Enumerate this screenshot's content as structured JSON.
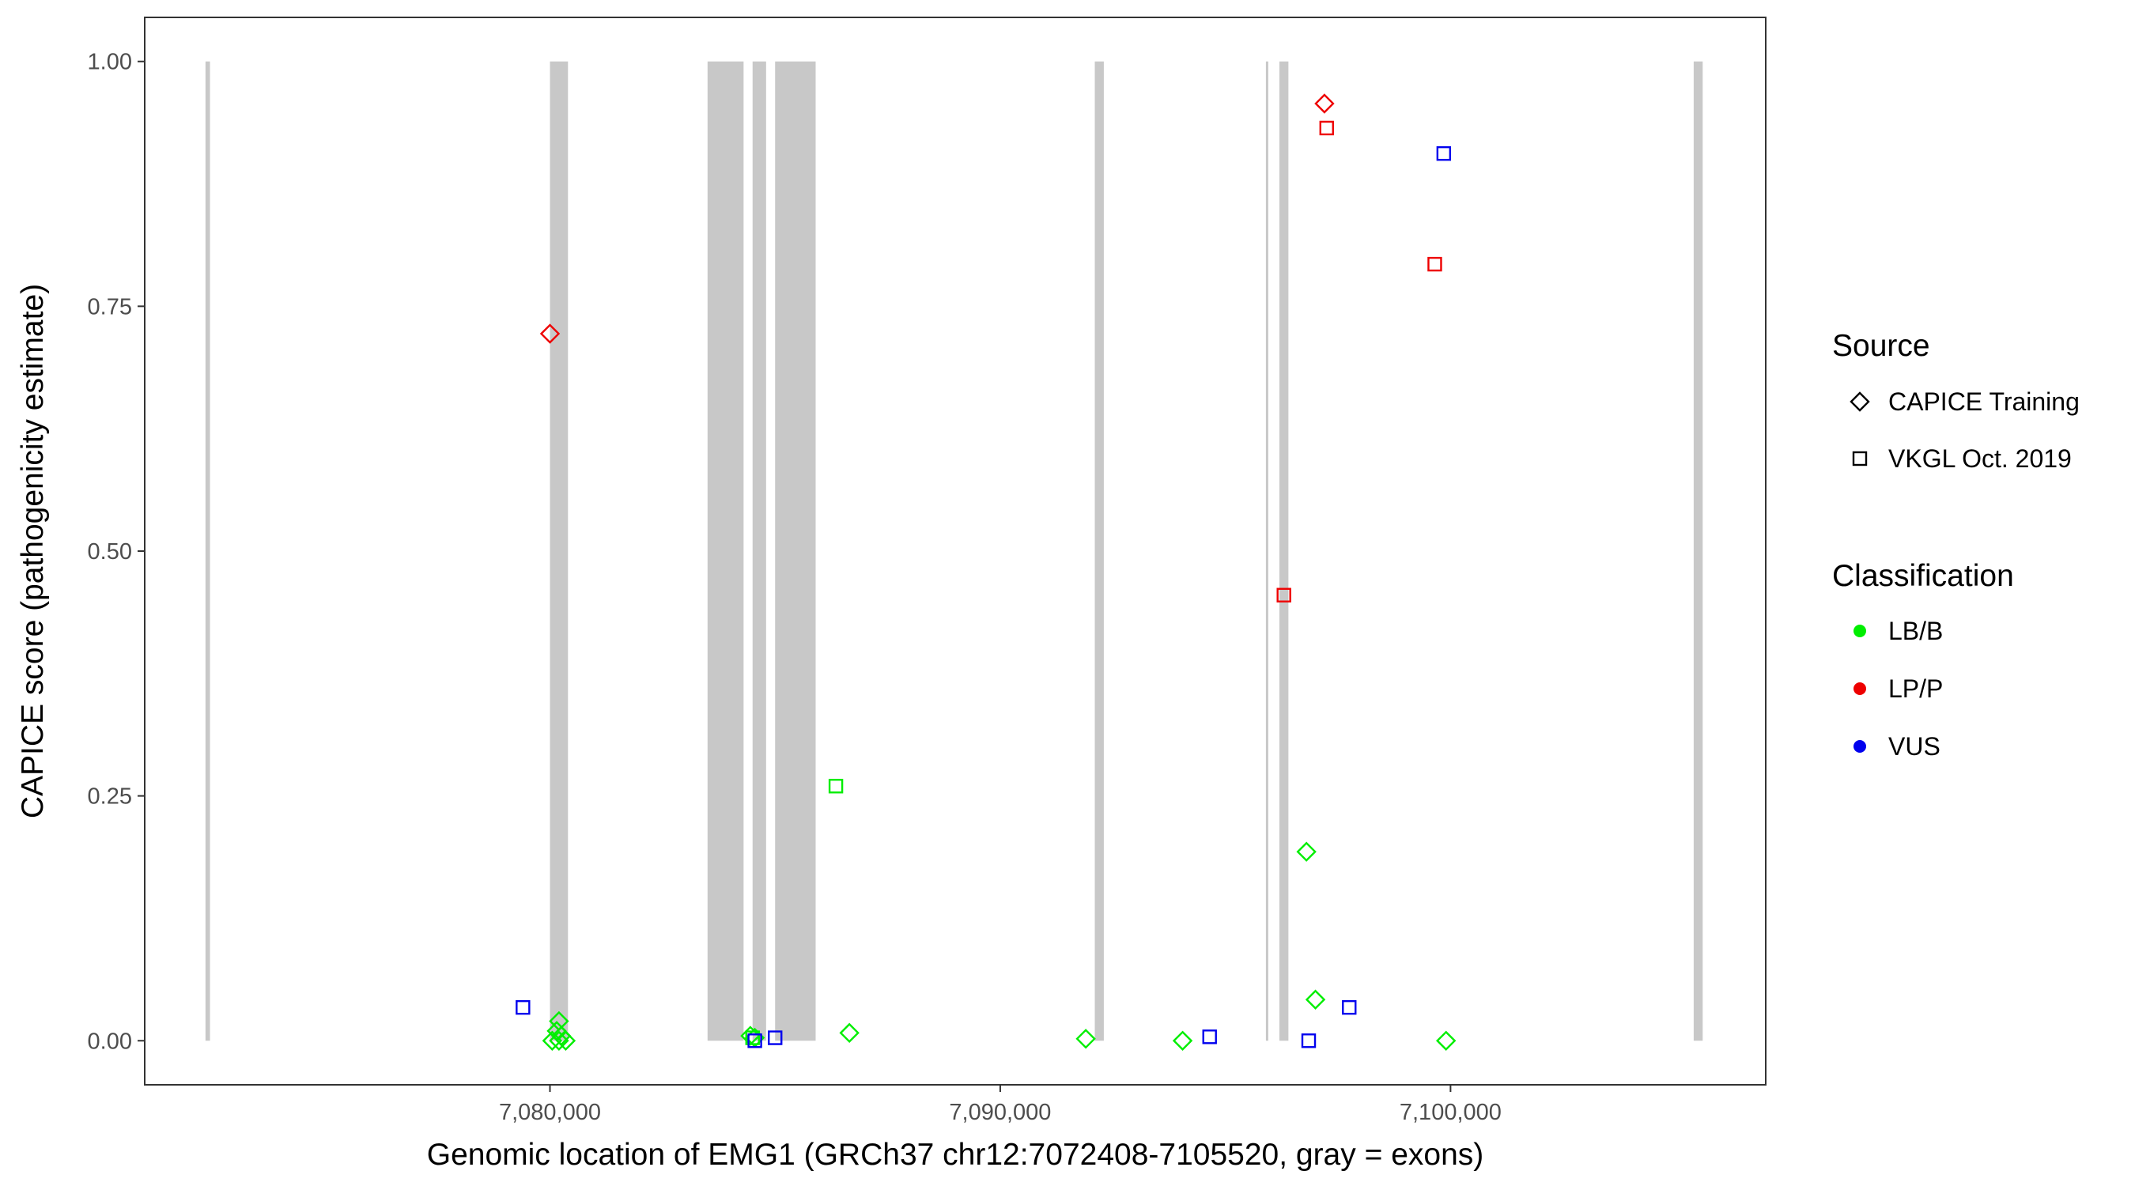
{
  "chart_data": {
    "type": "scatter",
    "xlabel": "Genomic location of EMG1 (GRCh37 chr12:7072408-7105520, gray = exons)",
    "ylabel": "CAPICE score (pathogenicity estimate)",
    "xlim": [
      7071000,
      7107000
    ],
    "ylim": [
      -0.045,
      1.045
    ],
    "x_ticks": [
      7080000,
      7090000,
      7100000
    ],
    "x_tick_labels": [
      "7,080,000",
      "7,090,000",
      "7,100,000"
    ],
    "y_ticks": [
      0,
      0.25,
      0.5,
      0.75,
      1.0
    ],
    "y_tick_labels": [
      "0.00",
      "0.25",
      "0.50",
      "0.75",
      "1.00"
    ],
    "exons": [
      {
        "start": 7072350,
        "end": 7072450
      },
      {
        "start": 7080000,
        "end": 7080400
      },
      {
        "start": 7083500,
        "end": 7084300
      },
      {
        "start": 7084500,
        "end": 7084800
      },
      {
        "start": 7085000,
        "end": 7085900
      },
      {
        "start": 7092100,
        "end": 7092300
      },
      {
        "start": 7095900,
        "end": 7095950
      },
      {
        "start": 7096200,
        "end": 7096400
      },
      {
        "start": 7105400,
        "end": 7105600
      }
    ],
    "grid": false,
    "legend_position": "right",
    "legends": [
      {
        "title": "Source",
        "entries": [
          {
            "label": "CAPICE Training",
            "shape": "diamond"
          },
          {
            "label": "VKGL Oct. 2019",
            "shape": "square"
          }
        ]
      },
      {
        "title": "Classification",
        "entries": [
          {
            "label": "LB/B",
            "color": "#00ee00"
          },
          {
            "label": "LP/P",
            "color": "#ee0000"
          },
          {
            "label": "VUS",
            "color": "#0000ee"
          }
        ]
      }
    ],
    "series": [
      {
        "source": "CAPICE Training",
        "classification": "LB/B",
        "shape": "diamond",
        "color": "#00ee00",
        "points": [
          [
            7080200,
            0.02
          ],
          [
            7080150,
            0.01
          ],
          [
            7080050,
            0.0
          ],
          [
            7080200,
            0.0
          ],
          [
            7080350,
            0.0
          ],
          [
            7080250,
            0.005
          ],
          [
            7084450,
            0.005
          ],
          [
            7084550,
            0.003
          ],
          [
            7086650,
            0.008
          ],
          [
            7091900,
            0.002
          ],
          [
            7094050,
            0.0
          ],
          [
            7096800,
            0.193
          ],
          [
            7097000,
            0.042
          ],
          [
            7099900,
            0.0
          ]
        ]
      },
      {
        "source": "CAPICE Training",
        "classification": "LP/P",
        "shape": "diamond",
        "color": "#ee0000",
        "points": [
          [
            7080000,
            0.722
          ],
          [
            7097200,
            0.957
          ]
        ]
      },
      {
        "source": "VKGL Oct. 2019",
        "classification": "LB/B",
        "shape": "square",
        "color": "#00ee00",
        "points": [
          [
            7086350,
            0.26
          ],
          [
            7084500,
            0.003
          ]
        ]
      },
      {
        "source": "VKGL Oct. 2019",
        "classification": "LP/P",
        "shape": "square",
        "color": "#ee0000",
        "points": [
          [
            7096300,
            0.455
          ],
          [
            7097250,
            0.932
          ],
          [
            7099650,
            0.793
          ]
        ]
      },
      {
        "source": "VKGL Oct. 2019",
        "classification": "VUS",
        "shape": "square",
        "color": "#0000ee",
        "points": [
          [
            7079400,
            0.034
          ],
          [
            7084550,
            0.0
          ],
          [
            7085000,
            0.003
          ],
          [
            7094650,
            0.004
          ],
          [
            7096850,
            0.0
          ],
          [
            7097750,
            0.034
          ],
          [
            7099850,
            0.906
          ]
        ]
      }
    ]
  }
}
